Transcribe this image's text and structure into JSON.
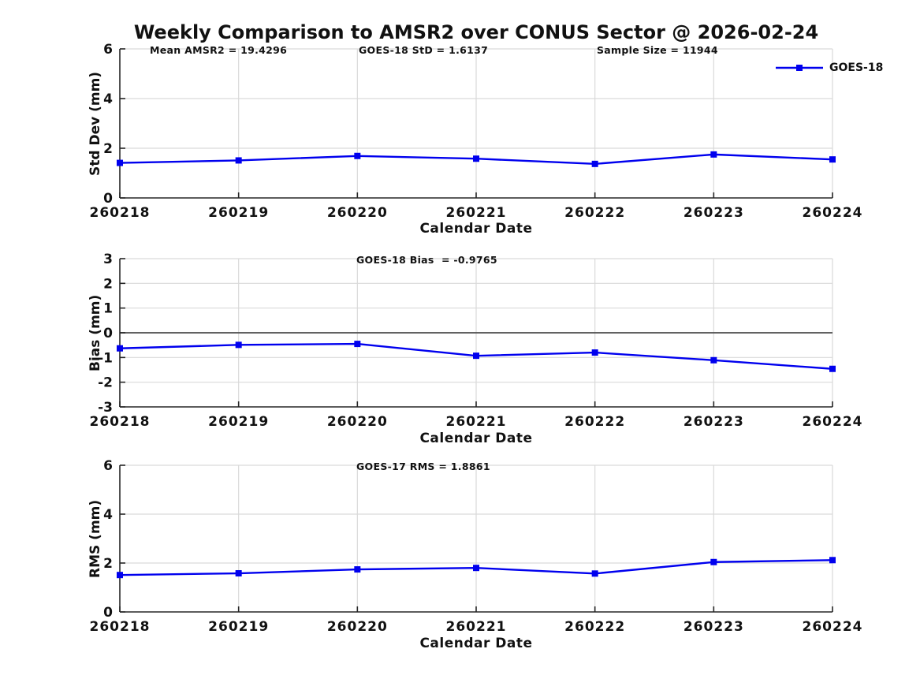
{
  "title": "Weekly Comparison to AMSR2 over CONUS Sector @ 2026-02-24",
  "legend": {
    "label": "GOES-18",
    "position": "top-right"
  },
  "colors": {
    "line": "#0000EE",
    "axis": "#262626",
    "grid": "#d9d9d9",
    "zero_line": "#4d4d4d",
    "text": "#111111",
    "background": "#ffffff"
  },
  "chart_data": [
    {
      "type": "line",
      "id": "std-dev",
      "ylabel": "Std Dev (mm)",
      "xlabel": "Calendar Date",
      "ylim": [
        0,
        6
      ],
      "yticks": [
        0,
        2,
        4,
        6
      ],
      "grid": true,
      "zero_line": false,
      "legend_position": "top-right",
      "categories": [
        "260218",
        "260219",
        "260220",
        "260221",
        "260222",
        "260223",
        "260224"
      ],
      "annotations": [
        {
          "text": "Mean AMSR2 = 19.4296"
        },
        {
          "text": "GOES-18 StD = 1.6137"
        },
        {
          "text": "Sample Size = 11944"
        }
      ],
      "series": [
        {
          "name": "GOES-18",
          "values": [
            1.41,
            1.51,
            1.69,
            1.58,
            1.37,
            1.75,
            1.55
          ]
        }
      ]
    },
    {
      "type": "line",
      "id": "bias",
      "ylabel": "Bias (mm)",
      "xlabel": "Calendar Date",
      "ylim": [
        -3,
        3
      ],
      "yticks": [
        -3,
        -2,
        -1,
        0,
        1,
        2,
        3
      ],
      "grid": true,
      "zero_line": true,
      "categories": [
        "260218",
        "260219",
        "260220",
        "260221",
        "260222",
        "260223",
        "260224"
      ],
      "annotations": [
        {
          "text": "GOES-18 Bias  = -0.9765"
        }
      ],
      "series": [
        {
          "name": "GOES-18",
          "values": [
            -0.63,
            -0.49,
            -0.45,
            -0.93,
            -0.8,
            -1.11,
            -1.46
          ]
        }
      ]
    },
    {
      "type": "line",
      "id": "rms",
      "ylabel": "RMS (mm)",
      "xlabel": "Calendar Date",
      "ylim": [
        0,
        6
      ],
      "yticks": [
        0,
        2,
        4,
        6
      ],
      "grid": true,
      "zero_line": false,
      "categories": [
        "260218",
        "260219",
        "260220",
        "260221",
        "260222",
        "260223",
        "260224"
      ],
      "annotations": [
        {
          "text": "GOES-17 RMS = 1.8861"
        }
      ],
      "series": [
        {
          "name": "GOES-18",
          "values": [
            1.51,
            1.58,
            1.74,
            1.8,
            1.57,
            2.04,
            2.12
          ]
        }
      ]
    }
  ]
}
